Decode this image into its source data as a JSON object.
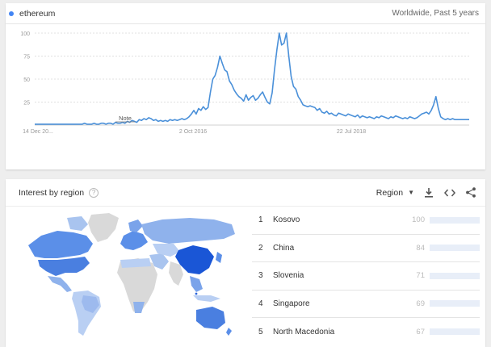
{
  "term": {
    "label": "ethereum",
    "dot_color": "#4285f4",
    "scope": "Worldwide, Past 5 years"
  },
  "chart_data": {
    "type": "line",
    "y_ticks": [
      "100",
      "75",
      "50",
      "25"
    ],
    "x_labels": [
      "14 Dec 20...",
      "2 Oct 2016",
      "22 Jul 2018"
    ],
    "note_label": "Note",
    "ylim": [
      0,
      100
    ],
    "color": "#4a90d9",
    "values": [
      1,
      1,
      1,
      1,
      1,
      1,
      1,
      1,
      1,
      1,
      1,
      1,
      1,
      1,
      1,
      1,
      1,
      1,
      1,
      1,
      1,
      2,
      1,
      1,
      1,
      2,
      1,
      1,
      2,
      2,
      1,
      2,
      2,
      1,
      3,
      2,
      2,
      3,
      2,
      4,
      3,
      5,
      4,
      3,
      6,
      5,
      7,
      6,
      8,
      7,
      5,
      6,
      4,
      5,
      4,
      5,
      4,
      6,
      5,
      6,
      5,
      6,
      7,
      6,
      7,
      9,
      12,
      16,
      12,
      18,
      16,
      20,
      17,
      19,
      36,
      50,
      54,
      63,
      75,
      67,
      60,
      58,
      48,
      44,
      38,
      34,
      31,
      29,
      26,
      33,
      27,
      30,
      32,
      27,
      29,
      33,
      36,
      30,
      25,
      23,
      35,
      60,
      82,
      100,
      87,
      89,
      100,
      75,
      53,
      42,
      39,
      31,
      27,
      22,
      21,
      20,
      21,
      20,
      19,
      16,
      18,
      14,
      13,
      15,
      12,
      13,
      11,
      10,
      13,
      12,
      11,
      10,
      12,
      11,
      10,
      9,
      11,
      8,
      10,
      9,
      8,
      9,
      8,
      7,
      9,
      8,
      10,
      9,
      8,
      7,
      9,
      8,
      10,
      9,
      8,
      7,
      8,
      7,
      9,
      8,
      7,
      8,
      10,
      12,
      13,
      14,
      12,
      16,
      22,
      31,
      18,
      9,
      7,
      6,
      7,
      6,
      7,
      6,
      6,
      6,
      6,
      6,
      6,
      6
    ]
  },
  "region": {
    "title": "Interest by region",
    "help_symbol": "?",
    "selector_label": "Region",
    "accent": "#4a86e8",
    "rows": [
      {
        "rank": "1",
        "name": "Kosovo",
        "value": "100",
        "pct": 100
      },
      {
        "rank": "2",
        "name": "China",
        "value": "84",
        "pct": 84
      },
      {
        "rank": "3",
        "name": "Slovenia",
        "value": "71",
        "pct": 71
      },
      {
        "rank": "4",
        "name": "Singapore",
        "value": "69",
        "pct": 69
      },
      {
        "rank": "5",
        "name": "North Macedonia",
        "value": "67",
        "pct": 67
      }
    ]
  },
  "icons": {
    "download": "download-icon",
    "embed": "embed-icon",
    "share": "share-icon"
  }
}
